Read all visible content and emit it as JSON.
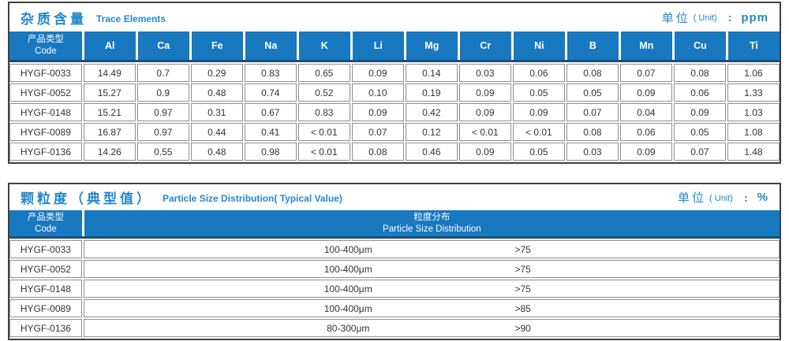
{
  "colors": {
    "header_blue": "#1878c0",
    "header_underline_navy": "#1d4e79",
    "title_blue": "#2288cd",
    "frame_border": "#404040",
    "cell_border": "#8f8f8f",
    "text": "#333333"
  },
  "table1": {
    "title_zh": "杂质含量",
    "title_en": "Trace Elements",
    "unit_label_zh": "单位",
    "unit_label_en": "( Unit)",
    "unit_colon": ":",
    "unit_value": "ppm",
    "code_header_zh": "产品类型",
    "code_header_en": "Code",
    "columns": [
      "Al",
      "Ca",
      "Fe",
      "Na",
      "K",
      "Li",
      "Mg",
      "Cr",
      "Ni",
      "B",
      "Mn",
      "Cu",
      "Ti"
    ],
    "rows": [
      {
        "code": "HYGF-0033",
        "values": [
          "14.49",
          "0.7",
          "0.29",
          "0.83",
          "0.65",
          "0.09",
          "0.14",
          "0.03",
          "0.06",
          "0.08",
          "0.07",
          "0.08",
          "1.06"
        ]
      },
      {
        "code": "HYGF-0052",
        "values": [
          "15.27",
          "0.9",
          "0.48",
          "0.74",
          "0.52",
          "0.10",
          "0.19",
          "0.09",
          "0.05",
          "0.05",
          "0.09",
          "0.06",
          "1.33"
        ]
      },
      {
        "code": "HYGF-0148",
        "values": [
          "15.21",
          "0.97",
          "0.31",
          "0.67",
          "0.83",
          "0.09",
          "0.42",
          "0.09",
          "0.09",
          "0.07",
          "0.04",
          "0.09",
          "1.03"
        ]
      },
      {
        "code": "HYGF-0089",
        "values": [
          "16.87",
          "0.97",
          "0.44",
          "0.41",
          "< 0.01",
          "0.07",
          "0.12",
          "< 0.01",
          "< 0.01",
          "0.08",
          "0.06",
          "0.05",
          "1.08"
        ]
      },
      {
        "code": "HYGF-0136",
        "values": [
          "14.26",
          "0.55",
          "0.48",
          "0.98",
          "< 0.01",
          "0.08",
          "0.46",
          "0.09",
          "0.05",
          "0.03",
          "0.09",
          "0.07",
          "1.48"
        ]
      }
    ]
  },
  "table2": {
    "title_zh": "颗粒度（典型值）",
    "title_en": "Particle Size Distribution( Typical Value)",
    "unit_label_zh": "单位",
    "unit_label_en": "( Unit)",
    "unit_colon": ":",
    "unit_value": "%",
    "code_header_zh": "产品类型",
    "code_header_en": "Code",
    "dist_header_zh": "粒度分布",
    "dist_header_en": "Particle Size  Distribution",
    "rows": [
      {
        "code": "HYGF-0033",
        "range": "100-400μm",
        "value": ">75"
      },
      {
        "code": "HYGF-0052",
        "range": "100-400μm",
        "value": ">75"
      },
      {
        "code": "HYGF-0148",
        "range": "100-400μm",
        "value": ">75"
      },
      {
        "code": "HYGF-0089",
        "range": "100-400μm",
        "value": ">85"
      },
      {
        "code": "HYGF-0136",
        "range": "80-300μm",
        "value": ">90"
      }
    ]
  }
}
